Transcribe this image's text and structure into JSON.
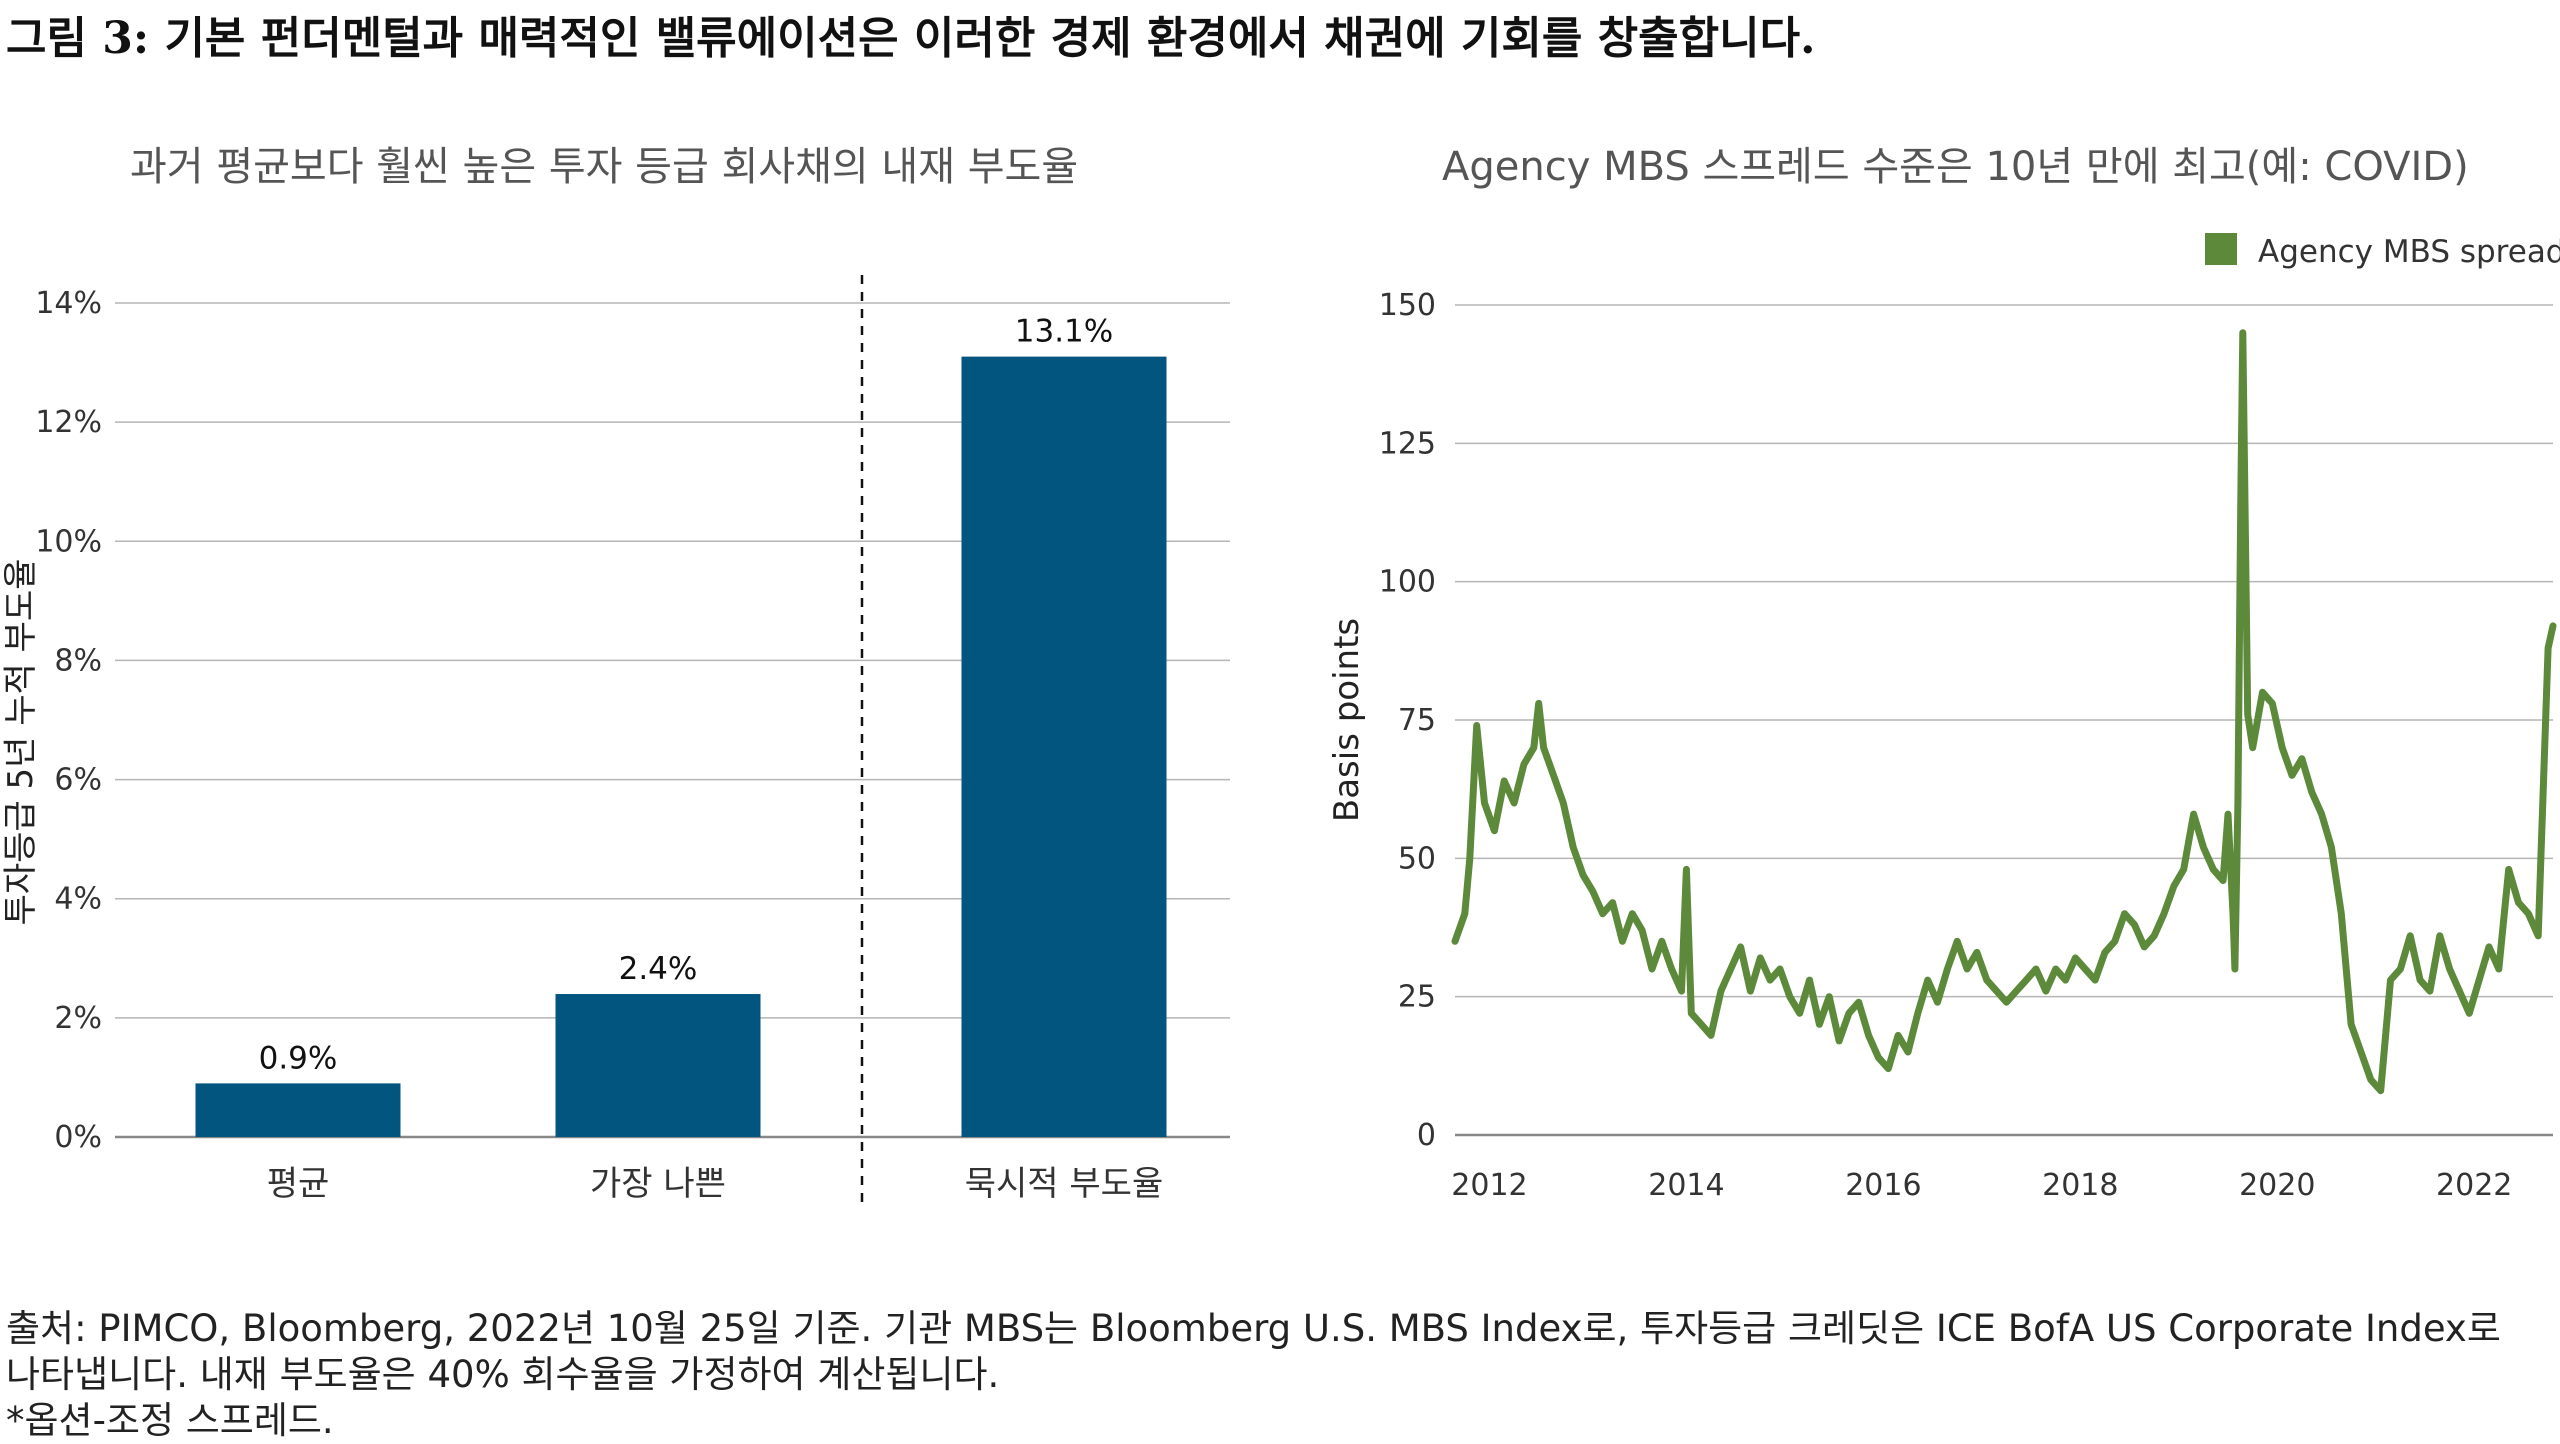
{
  "figure": {
    "title": "그림 3: 기본 펀더멘털과 매력적인 밸류에이션은 이러한 경제 환경에서 채권에 기회를 창출합니다."
  },
  "footnotes": {
    "line1": "출처: PIMCO, Bloomberg, 2022년 10월 25일 기준. 기관 MBS는 Bloomberg U.S. MBS Index로, 투자등급 크레딧은 ICE BofA US Corporate Index로",
    "line2": "나타냅니다. 내재 부도율은 40% 회수율을 가정하여 계산됩니다.",
    "line3": "*옵션-조정 스프레드."
  },
  "colors": {
    "bar": "#02557f",
    "line": "#5c8a3a",
    "grid": "#b5b5b5",
    "axis": "#888888"
  },
  "chart_data": [
    {
      "type": "bar",
      "title": "과거 평균보다 훨씬 높은 투자 등급 회사채의 내재 부도율",
      "ylabel": "투자등급 5년 누적 부도율",
      "xlabel": "",
      "categories": [
        "평균",
        "가장 나쁜",
        "묵시적 부도율"
      ],
      "values": [
        0.9,
        2.4,
        13.1
      ],
      "value_labels": [
        "0.9%",
        "2.4%",
        "13.1%"
      ],
      "ylim": [
        0,
        14
      ],
      "yticks": [
        "0%",
        "2%",
        "4%",
        "6%",
        "8%",
        "10%",
        "12%",
        "14%"
      ],
      "grid": true,
      "divider": "dashed vertical line between 가장 나쁜 and 묵시적 부도율"
    },
    {
      "type": "line",
      "title": "Agency MBS 스프레드 수준은 10년 만에 최고(예: COVID)",
      "ylabel": "Basis points",
      "xlabel": "",
      "legend_position": "top-right",
      "xlim": [
        2011.7,
        2022.85
      ],
      "ylim": [
        0,
        150
      ],
      "xticks": [
        "2012",
        "2014",
        "2016",
        "2018",
        "2020",
        "2022"
      ],
      "yticks": [
        "0",
        "25",
        "50",
        "75",
        "100",
        "125",
        "150"
      ],
      "grid": true,
      "series": [
        {
          "name": "Agency MBS spread*",
          "x": [
            2011.7,
            2011.8,
            2011.85,
            2011.92,
            2012.0,
            2012.1,
            2012.2,
            2012.3,
            2012.4,
            2012.5,
            2012.55,
            2012.6,
            2012.7,
            2012.8,
            2012.9,
            2013.0,
            2013.1,
            2013.2,
            2013.3,
            2013.4,
            2013.5,
            2013.6,
            2013.7,
            2013.8,
            2013.9,
            2014.0,
            2014.05,
            2014.1,
            2014.2,
            2014.3,
            2014.4,
            2014.5,
            2014.6,
            2014.7,
            2014.8,
            2014.9,
            2015.0,
            2015.1,
            2015.2,
            2015.3,
            2015.4,
            2015.5,
            2015.6,
            2015.7,
            2015.8,
            2015.9,
            2016.0,
            2016.1,
            2016.2,
            2016.3,
            2016.4,
            2016.5,
            2016.6,
            2016.7,
            2016.8,
            2016.9,
            2017.0,
            2017.1,
            2017.2,
            2017.3,
            2017.4,
            2017.5,
            2017.6,
            2017.7,
            2017.8,
            2017.9,
            2018.0,
            2018.1,
            2018.2,
            2018.3,
            2018.4,
            2018.5,
            2018.6,
            2018.7,
            2018.8,
            2018.9,
            2019.0,
            2019.1,
            2019.2,
            2019.3,
            2019.4,
            2019.5,
            2019.55,
            2019.6,
            2019.62,
            2019.65,
            2019.68,
            2019.7,
            2019.75,
            2019.8,
            2019.9,
            2020.0,
            2020.1,
            2020.2,
            2020.3,
            2020.4,
            2020.5,
            2020.6,
            2020.7,
            2020.8,
            2020.9,
            2021.0,
            2021.1,
            2021.2,
            2021.3,
            2021.4,
            2021.5,
            2021.6,
            2021.7,
            2021.8,
            2021.9,
            2022.0,
            2022.1,
            2022.2,
            2022.3,
            2022.4,
            2022.5,
            2022.6,
            2022.7,
            2022.8,
            2022.85
          ],
          "values": [
            35,
            40,
            50,
            74,
            60,
            55,
            64,
            60,
            67,
            70,
            78,
            70,
            65,
            60,
            52,
            47,
            44,
            40,
            42,
            35,
            40,
            37,
            30,
            35,
            30,
            26,
            48,
            22,
            20,
            18,
            26,
            30,
            34,
            26,
            32,
            28,
            30,
            25,
            22,
            28,
            20,
            25,
            17,
            22,
            24,
            18,
            14,
            12,
            18,
            15,
            22,
            28,
            24,
            30,
            35,
            30,
            33,
            28,
            26,
            24,
            26,
            28,
            30,
            26,
            30,
            28,
            32,
            30,
            28,
            33,
            35,
            40,
            38,
            34,
            36,
            40,
            45,
            48,
            58,
            52,
            48,
            46,
            58,
            40,
            30,
            60,
            115,
            145,
            76,
            70,
            80,
            78,
            70,
            65,
            68,
            62,
            58,
            52,
            40,
            20,
            15,
            10,
            8,
            28,
            30,
            36,
            28,
            26,
            36,
            30,
            26,
            22,
            28,
            34,
            30,
            48,
            42,
            40,
            36,
            88,
            92
          ]
        }
      ]
    }
  ]
}
